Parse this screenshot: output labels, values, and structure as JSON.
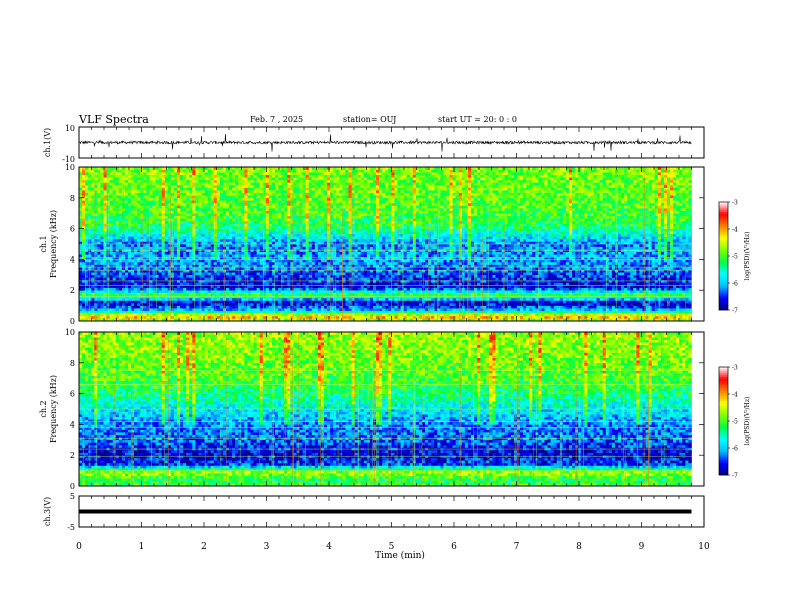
{
  "header": {
    "title": "VLF Spectra",
    "date": "Feb. 7 , 2025",
    "station": "station= OUJ",
    "start_ut": "start UT =  20: 0  : 0"
  },
  "colors": {
    "spectrogram_colormap": [
      "#00007f",
      "#0000ff",
      "#00bfff",
      "#00ffff",
      "#00ff40",
      "#80ff00",
      "#ffff00",
      "#ff8000",
      "#ff0000",
      "#ffffff"
    ],
    "waveform": "#000000"
  },
  "chart_data": [
    {
      "type": "line",
      "panel": "ch1-waveform",
      "ylabel": "ch.1(V)",
      "ylim": [
        -10,
        10
      ],
      "yticks": [
        "10",
        "-10"
      ],
      "x": [
        0,
        1,
        2,
        3,
        4,
        5,
        6,
        7,
        8,
        9,
        9.8
      ],
      "values": [
        0,
        0,
        0,
        0,
        0,
        0,
        0,
        0,
        0,
        0,
        0
      ],
      "notes": "noisy trace near 0 V with occasional spikes"
    },
    {
      "type": "heatmap",
      "panel": "ch1-spectrogram",
      "ylabel": "ch.1 Frequency (kHz)",
      "ylim": [
        0,
        10
      ],
      "xlim": [
        0,
        10
      ],
      "data_end_min": 9.8,
      "yticks": [
        "0",
        "2",
        "4",
        "6",
        "8",
        "10"
      ],
      "colorbar": {
        "label": "log(PSD)(V²/Hz)",
        "range": [
          -7,
          -3
        ],
        "ticks": [
          "-3",
          "-4",
          "-5",
          "-6",
          "-7"
        ]
      },
      "profile": [
        {
          "f": 0.0,
          "v": -5.0
        },
        {
          "f": 0.3,
          "v": -4.0
        },
        {
          "f": 0.7,
          "v": -6.0
        },
        {
          "f": 1.2,
          "v": -6.8
        },
        {
          "f": 1.7,
          "v": -5.0
        },
        {
          "f": 2.2,
          "v": -6.7
        },
        {
          "f": 3.0,
          "v": -6.4
        },
        {
          "f": 4.0,
          "v": -6.1
        },
        {
          "f": 5.0,
          "v": -6.2
        },
        {
          "f": 5.5,
          "v": -5.8
        },
        {
          "f": 6.2,
          "v": -5.2
        },
        {
          "f": 7.2,
          "v": -5.0
        },
        {
          "f": 8.5,
          "v": -4.9
        },
        {
          "f": 10.0,
          "v": -4.8
        }
      ],
      "lines_khz": [
        0.5,
        1.6,
        2.3,
        2.6,
        3.3,
        3.5,
        4.0,
        4.1,
        4.6,
        5.0
      ]
    },
    {
      "type": "heatmap",
      "panel": "ch2-spectrogram",
      "ylabel": "ch.2 Frequency (kHz)",
      "ylim": [
        0,
        10
      ],
      "xlim": [
        0,
        10
      ],
      "data_end_min": 9.8,
      "yticks": [
        "0",
        "2",
        "4",
        "6",
        "8",
        "10"
      ],
      "colorbar": {
        "label": "log(PSD)(V²/Hz)",
        "range": [
          -7,
          -3
        ],
        "ticks": [
          "-3",
          "-4",
          "-5",
          "-6",
          "-7"
        ]
      },
      "profile": [
        {
          "f": 0.0,
          "v": -5.0
        },
        {
          "f": 0.4,
          "v": -5.2
        },
        {
          "f": 0.9,
          "v": -4.6
        },
        {
          "f": 1.4,
          "v": -6.5
        },
        {
          "f": 2.2,
          "v": -6.7
        },
        {
          "f": 3.0,
          "v": -6.3
        },
        {
          "f": 4.0,
          "v": -6.2
        },
        {
          "f": 5.0,
          "v": -5.8
        },
        {
          "f": 6.0,
          "v": -5.3
        },
        {
          "f": 7.0,
          "v": -5.0
        },
        {
          "f": 8.5,
          "v": -4.8
        },
        {
          "f": 10.0,
          "v": -4.7
        }
      ],
      "lines_khz": [
        1.0,
        1.9,
        2.4,
        3.1,
        3.8,
        4.2,
        5.0,
        6.6,
        7.5
      ]
    },
    {
      "type": "line",
      "panel": "ch3-waveform",
      "ylabel": "ch.3(V)",
      "ylim": [
        -5,
        5
      ],
      "yticks": [
        "5",
        "0",
        "-5"
      ],
      "x": [
        0,
        9.8
      ],
      "values": [
        0,
        0
      ],
      "notes": "flat thick trace at 0 V"
    }
  ],
  "x_axis": {
    "label": "Time  (min)",
    "ticks": [
      "0",
      "1",
      "2",
      "3",
      "4",
      "5",
      "6",
      "7",
      "8",
      "9",
      "10"
    ]
  }
}
